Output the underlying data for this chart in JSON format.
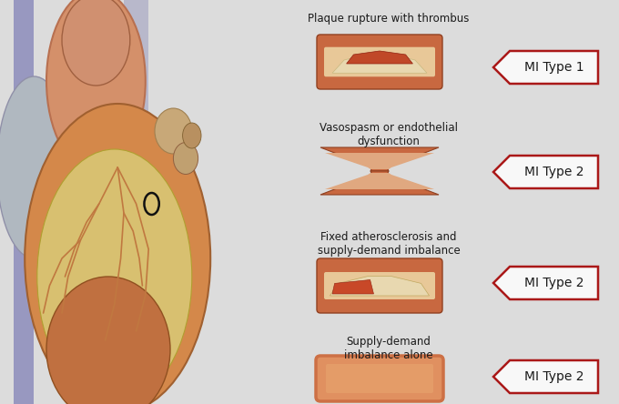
{
  "background_color": "#dcdcdc",
  "labels": [
    "Plaque rupture with thrombus",
    "Vasospasm or endothelial\ndysfunction",
    "Fixed atherosclerosis and\nsupply-demand imbalance",
    "Supply-demand\nimbalance alone"
  ],
  "mi_labels": [
    "MI Type 1",
    "MI Type 2",
    "MI Type 2",
    "MI Type 2"
  ],
  "label_color": "#1a1a1a",
  "vessel_outer": "#c86840",
  "vessel_wall": "#d4784a",
  "vessel_lumen": "#e8c898",
  "thrombus_dark": "#b03818",
  "thrombus_light": "#e8c898",
  "plaque_color": "#e8d8a8",
  "mi_border": "#aa1818",
  "mi_bg": "#f8f8f8",
  "mi_text": "#1a1a1a",
  "heart_orange": "#d4884a",
  "heart_tan": "#d8c070",
  "heart_brown": "#c06030",
  "heart_gray": "#b0b8c8",
  "heart_lavender": "#9090b8"
}
